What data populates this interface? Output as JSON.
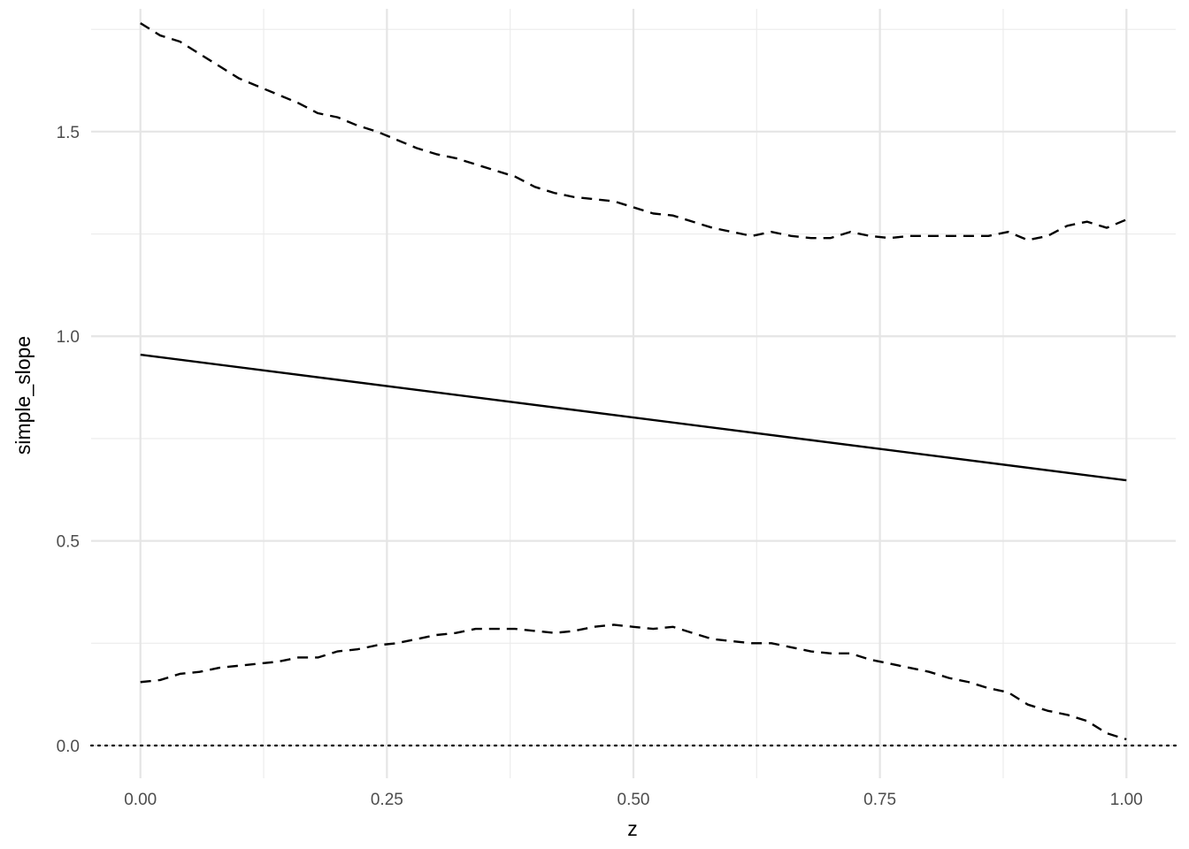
{
  "chart_data": {
    "type": "line",
    "xlabel": "z",
    "ylabel": "simple_slope",
    "xlim": [
      -0.05,
      1.05
    ],
    "ylim": [
      -0.08,
      1.8
    ],
    "x_ticks": [
      0.0,
      0.25,
      0.5,
      0.75,
      1.0
    ],
    "x_tick_labels": [
      "0.00",
      "0.25",
      "0.50",
      "0.75",
      "1.00"
    ],
    "y_ticks": [
      0.0,
      0.5,
      1.0,
      1.5
    ],
    "y_tick_labels": [
      "0.0",
      "0.5",
      "1.0",
      "1.5"
    ],
    "grid": true,
    "reference_line": {
      "y": 0,
      "style": "dotted"
    },
    "series": [
      {
        "style": "solid",
        "x": [
          0.0,
          1.0
        ],
        "values": [
          0.955,
          0.648
        ]
      },
      {
        "style": "dashed",
        "x": [
          0.0,
          0.02,
          0.04,
          0.06,
          0.08,
          0.1,
          0.12,
          0.14,
          0.16,
          0.18,
          0.2,
          0.22,
          0.24,
          0.26,
          0.28,
          0.3,
          0.32,
          0.34,
          0.36,
          0.38,
          0.4,
          0.42,
          0.44,
          0.46,
          0.48,
          0.5,
          0.52,
          0.54,
          0.56,
          0.58,
          0.6,
          0.62,
          0.64,
          0.66,
          0.68,
          0.7,
          0.72,
          0.74,
          0.76,
          0.78,
          0.8,
          0.82,
          0.84,
          0.86,
          0.88,
          0.9,
          0.92,
          0.94,
          0.96,
          0.98,
          1.0
        ],
        "values": [
          1.765,
          1.735,
          1.72,
          1.69,
          1.66,
          1.63,
          1.61,
          1.59,
          1.57,
          1.545,
          1.535,
          1.515,
          1.5,
          1.48,
          1.46,
          1.445,
          1.435,
          1.42,
          1.405,
          1.39,
          1.365,
          1.35,
          1.34,
          1.335,
          1.33,
          1.315,
          1.3,
          1.295,
          1.28,
          1.265,
          1.255,
          1.245,
          1.255,
          1.245,
          1.24,
          1.24,
          1.255,
          1.245,
          1.24,
          1.245,
          1.245,
          1.245,
          1.245,
          1.245,
          1.255,
          1.235,
          1.245,
          1.27,
          1.28,
          1.265,
          1.285
        ]
      },
      {
        "style": "dashed",
        "x": [
          0.0,
          0.02,
          0.04,
          0.06,
          0.08,
          0.1,
          0.12,
          0.14,
          0.16,
          0.18,
          0.2,
          0.22,
          0.24,
          0.26,
          0.28,
          0.3,
          0.32,
          0.34,
          0.36,
          0.38,
          0.4,
          0.42,
          0.44,
          0.46,
          0.48,
          0.5,
          0.52,
          0.54,
          0.56,
          0.58,
          0.6,
          0.62,
          0.64,
          0.66,
          0.68,
          0.7,
          0.72,
          0.74,
          0.76,
          0.78,
          0.8,
          0.82,
          0.84,
          0.86,
          0.88,
          0.9,
          0.92,
          0.94,
          0.96,
          0.98,
          1.0
        ],
        "values": [
          0.155,
          0.16,
          0.175,
          0.18,
          0.19,
          0.195,
          0.2,
          0.205,
          0.215,
          0.215,
          0.23,
          0.235,
          0.245,
          0.25,
          0.26,
          0.27,
          0.275,
          0.285,
          0.285,
          0.285,
          0.28,
          0.275,
          0.28,
          0.29,
          0.295,
          0.29,
          0.285,
          0.29,
          0.275,
          0.26,
          0.255,
          0.25,
          0.25,
          0.24,
          0.23,
          0.225,
          0.225,
          0.21,
          0.2,
          0.19,
          0.18,
          0.165,
          0.155,
          0.14,
          0.13,
          0.1,
          0.085,
          0.075,
          0.06,
          0.03,
          0.015
        ]
      }
    ]
  }
}
